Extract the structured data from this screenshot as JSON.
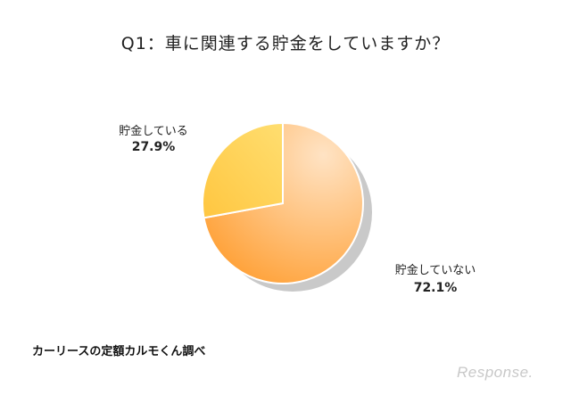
{
  "chart_data": {
    "type": "pie",
    "title": "Q1：車に関連する貯金をしていますか？",
    "slices": [
      {
        "label": "貯金していない",
        "value_text": "72.1%",
        "value": 72.1,
        "color_light": "#ffe3c4",
        "color_dark": "#ff9f33"
      },
      {
        "label": "貯金している",
        "value_text": "27.9%",
        "value": 27.9,
        "color_light": "#ffde70",
        "color_dark": "#ffc640"
      }
    ],
    "start": "12 o'clock, clockwise"
  },
  "source": "カーリースの定額カルモくん調べ",
  "watermark": "Response."
}
